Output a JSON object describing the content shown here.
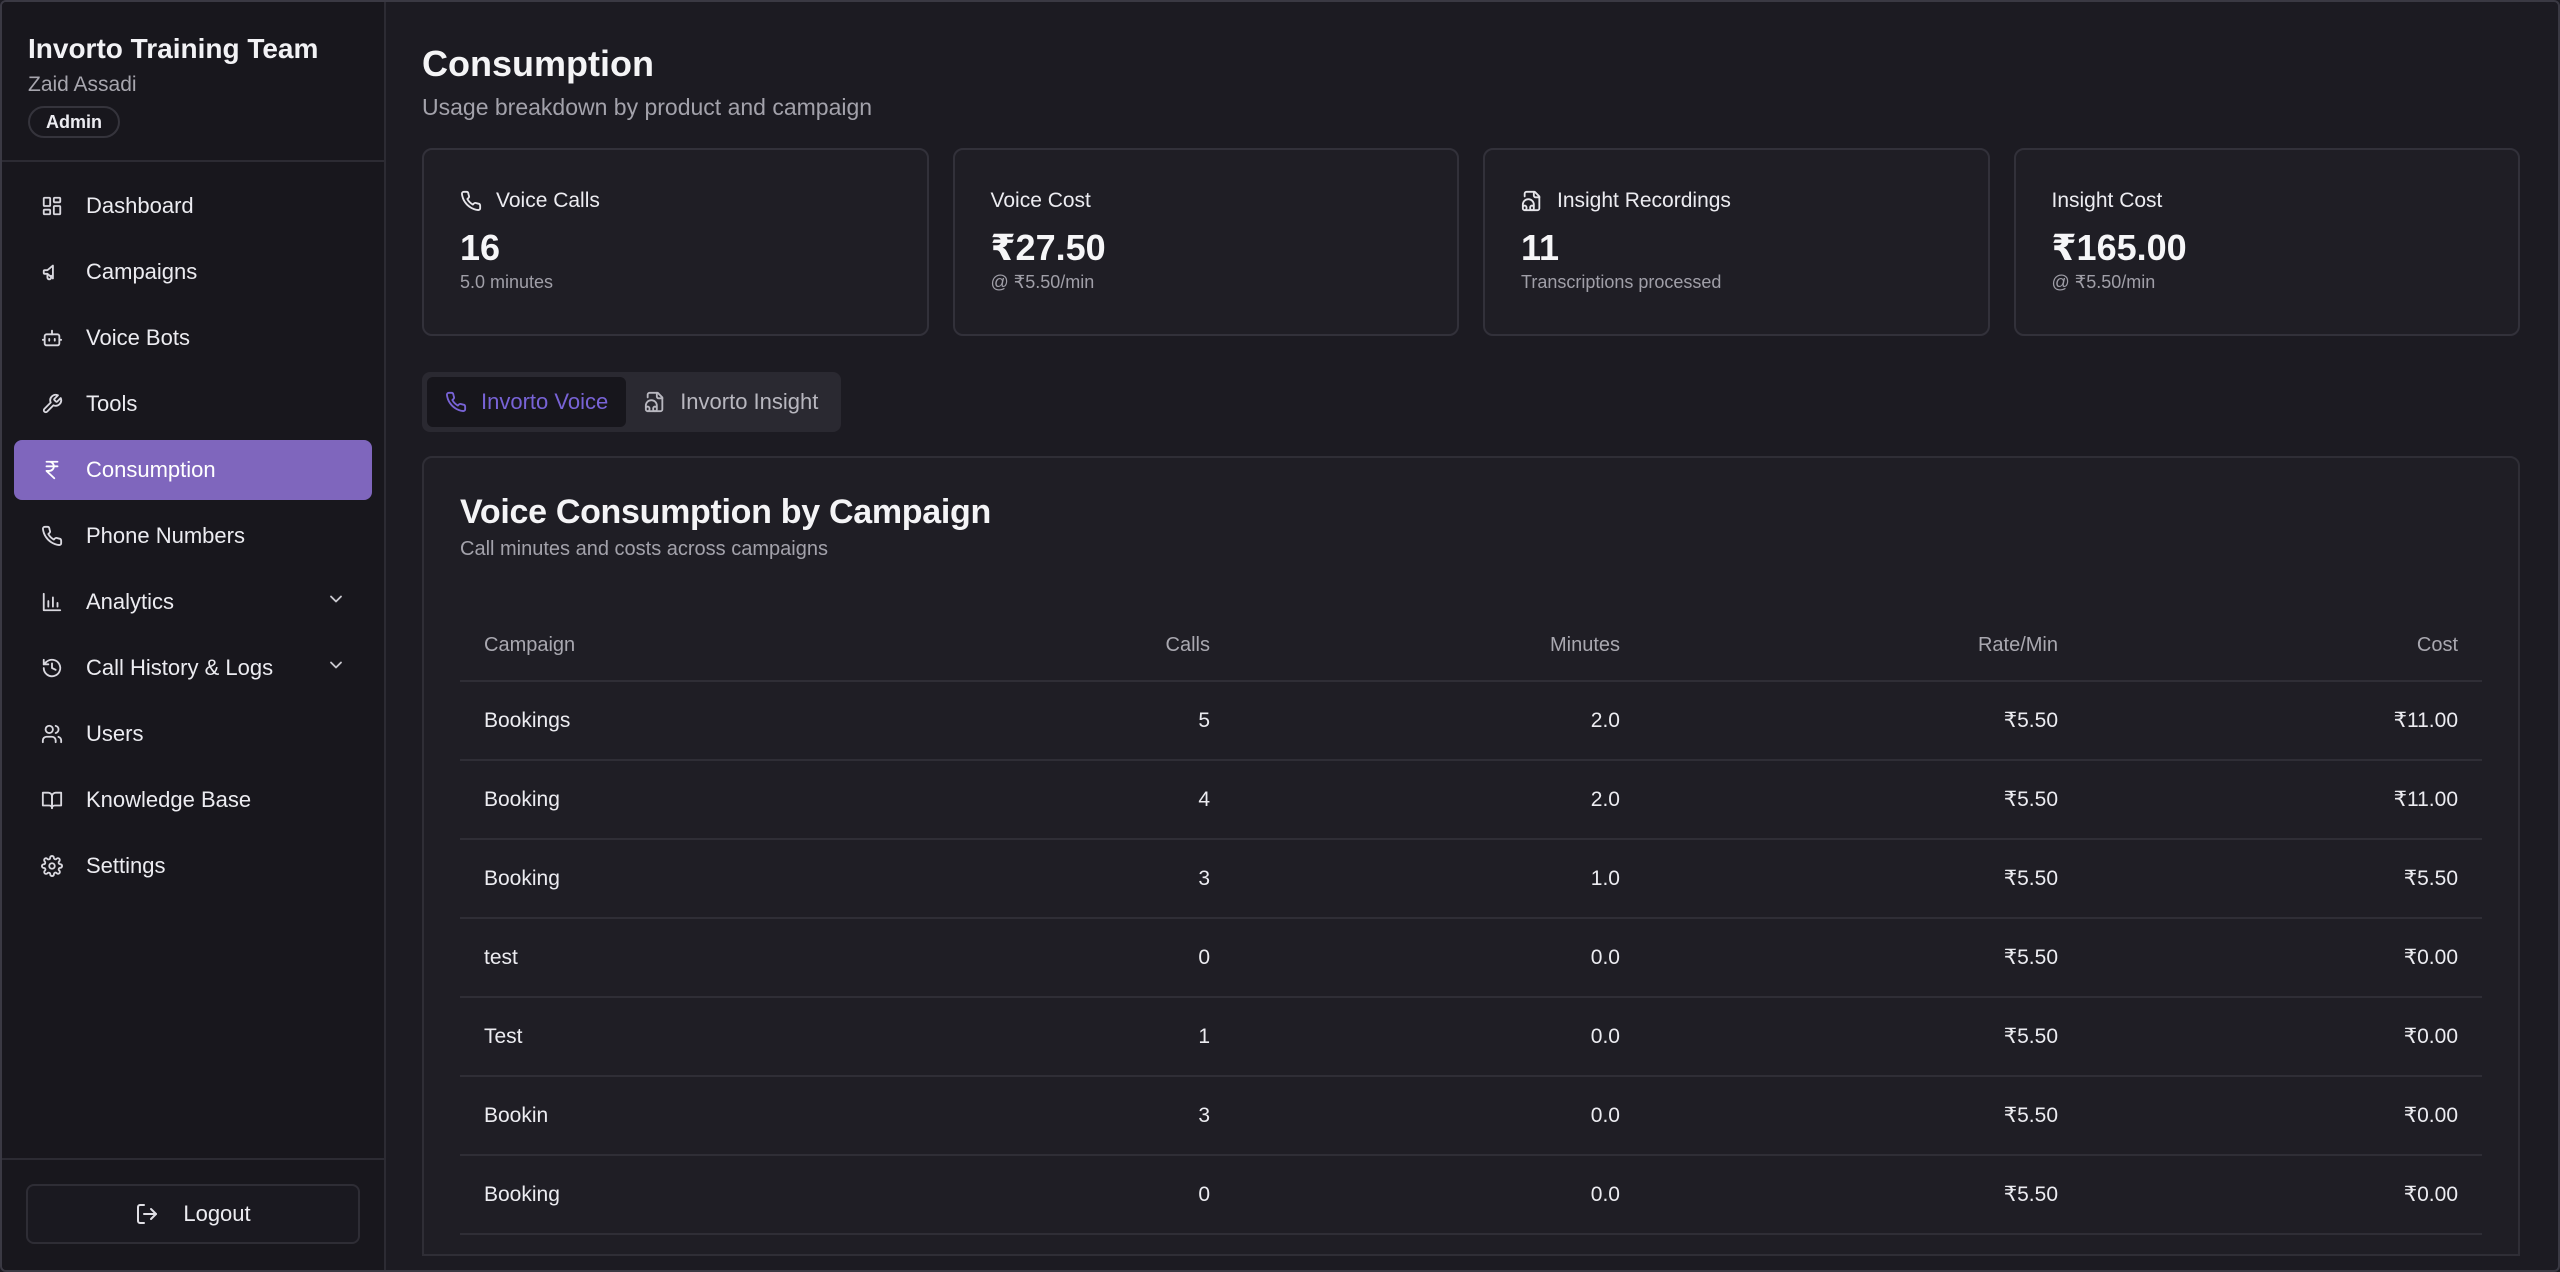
{
  "sidebar": {
    "team_name": "Invorto Training Team",
    "user_name": "Zaid Assadi",
    "role": "Admin",
    "items": [
      {
        "label": "Dashboard",
        "icon": "dashboard-icon"
      },
      {
        "label": "Campaigns",
        "icon": "megaphone-icon"
      },
      {
        "label": "Voice Bots",
        "icon": "bot-icon"
      },
      {
        "label": "Tools",
        "icon": "wrench-icon"
      },
      {
        "label": "Consumption",
        "icon": "rupee-icon",
        "active": true
      },
      {
        "label": "Phone Numbers",
        "icon": "phone-icon"
      },
      {
        "label": "Analytics",
        "icon": "bar-chart-icon",
        "expandable": true
      },
      {
        "label": "Call History & Logs",
        "icon": "history-icon",
        "expandable": true
      },
      {
        "label": "Users",
        "icon": "users-icon"
      },
      {
        "label": "Knowledge Base",
        "icon": "book-icon"
      },
      {
        "label": "Settings",
        "icon": "gear-icon"
      }
    ],
    "logout_label": "Logout"
  },
  "page": {
    "title": "Consumption",
    "subtitle": "Usage breakdown by product and campaign"
  },
  "stats": [
    {
      "label": "Voice Calls",
      "icon": "phone-icon",
      "value": "16",
      "sub": "5.0 minutes"
    },
    {
      "label": "Voice Cost",
      "icon": "",
      "value": "₹27.50",
      "sub": "@ ₹5.50/min"
    },
    {
      "label": "Insight Recordings",
      "icon": "file-audio-icon",
      "value": "11",
      "sub": "Transcriptions processed"
    },
    {
      "label": "Insight Cost",
      "icon": "",
      "value": "₹165.00",
      "sub": "@ ₹5.50/min"
    }
  ],
  "tabs": [
    {
      "label": "Invorto Voice",
      "icon": "phone-icon",
      "active": true
    },
    {
      "label": "Invorto Insight",
      "icon": "file-audio-icon",
      "active": false
    }
  ],
  "panel": {
    "title": "Voice Consumption by Campaign",
    "subtitle": "Call minutes and costs across campaigns",
    "columns": [
      "Campaign",
      "Calls",
      "Minutes",
      "Rate/Min",
      "Cost"
    ],
    "rows": [
      [
        "Bookings",
        "5",
        "2.0",
        "₹5.50",
        "₹11.00"
      ],
      [
        "Booking",
        "4",
        "2.0",
        "₹5.50",
        "₹11.00"
      ],
      [
        "Booking",
        "3",
        "1.0",
        "₹5.50",
        "₹5.50"
      ],
      [
        "test",
        "0",
        "0.0",
        "₹5.50",
        "₹0.00"
      ],
      [
        "Test",
        "1",
        "0.0",
        "₹5.50",
        "₹0.00"
      ],
      [
        "Bookin",
        "3",
        "0.0",
        "₹5.50",
        "₹0.00"
      ],
      [
        "Booking",
        "0",
        "0.0",
        "₹5.50",
        "₹0.00"
      ]
    ]
  },
  "colors": {
    "accent": "#7f66bd",
    "tab_active_text": "#7863d6",
    "background": "#1c1b22"
  }
}
